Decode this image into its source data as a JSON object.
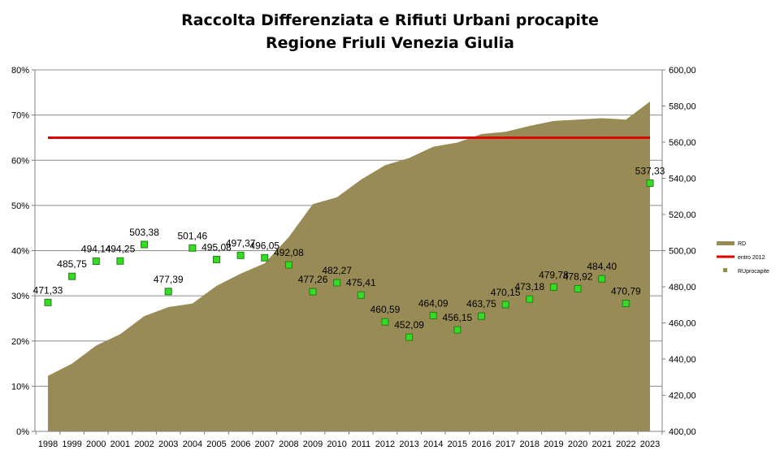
{
  "chart_data": {
    "type": "area",
    "title": "Raccolta Differenziata e Rifiuti Urbani procapite",
    "subtitle": "Regione Friuli Venezia Giulia",
    "categories": [
      "1998",
      "1999",
      "2000",
      "2001",
      "2002",
      "2003",
      "2004",
      "2005",
      "2006",
      "2007",
      "2008",
      "2009",
      "2010",
      "2011",
      "2012",
      "2013",
      "2014",
      "2015",
      "2016",
      "2017",
      "2018",
      "2019",
      "2020",
      "2021",
      "2022",
      "2023"
    ],
    "y_left": {
      "ticks": [
        "0%",
        "10%",
        "20%",
        "30%",
        "40%",
        "50%",
        "60%",
        "70%",
        "80%"
      ],
      "min": 0,
      "max": 80,
      "unit": "%"
    },
    "y_right": {
      "ticks": [
        "400,00",
        "420,00",
        "440,00",
        "460,00",
        "480,00",
        "500,00",
        "520,00",
        "540,00",
        "560,00",
        "580,00",
        "600,00"
      ],
      "min": 400,
      "max": 600
    },
    "grid": true,
    "legend_position": "right",
    "series": [
      {
        "name": "RD",
        "kind": "area",
        "axis": "left",
        "color": "#988B55",
        "values": [
          12.3,
          15.0,
          19.0,
          21.5,
          25.5,
          27.5,
          28.3,
          32.2,
          34.9,
          37.2,
          43.0,
          50.3,
          51.8,
          55.7,
          58.9,
          60.5,
          63.0,
          63.9,
          65.8,
          66.3,
          67.6,
          68.7,
          69.0,
          69.3,
          69.0,
          73.0
        ]
      },
      {
        "name": "entro 2012",
        "kind": "line",
        "axis": "left",
        "color": "#E00000",
        "values": [
          65,
          65,
          65,
          65,
          65,
          65,
          65,
          65,
          65,
          65,
          65,
          65,
          65,
          65,
          65,
          65,
          65,
          65,
          65,
          65,
          65,
          65,
          65,
          65,
          65,
          65
        ]
      },
      {
        "name": "RUprocapite",
        "kind": "scatter",
        "axis": "right",
        "color": "#33DD22",
        "values": [
          471.33,
          485.75,
          494.14,
          494.25,
          503.38,
          477.39,
          501.46,
          495.08,
          497.37,
          496.05,
          492.08,
          477.26,
          482.27,
          475.41,
          460.59,
          452.09,
          464.09,
          456.15,
          463.75,
          470.15,
          473.18,
          479.78,
          478.92,
          484.4,
          470.79,
          537.33
        ],
        "labels": [
          "471,33",
          "485,75",
          "494,14",
          "494,25",
          "503,38",
          "477,39",
          "501,46",
          "495,08",
          "497,37",
          "496,05",
          "492,08",
          "477,26",
          "482,27",
          "475,41",
          "460,59",
          "452,09",
          "464,09",
          "456,15",
          "463,75",
          "470,15",
          "473,18",
          "479,78",
          "478,92",
          "484,40",
          "470,79",
          "537,33"
        ]
      }
    ]
  }
}
